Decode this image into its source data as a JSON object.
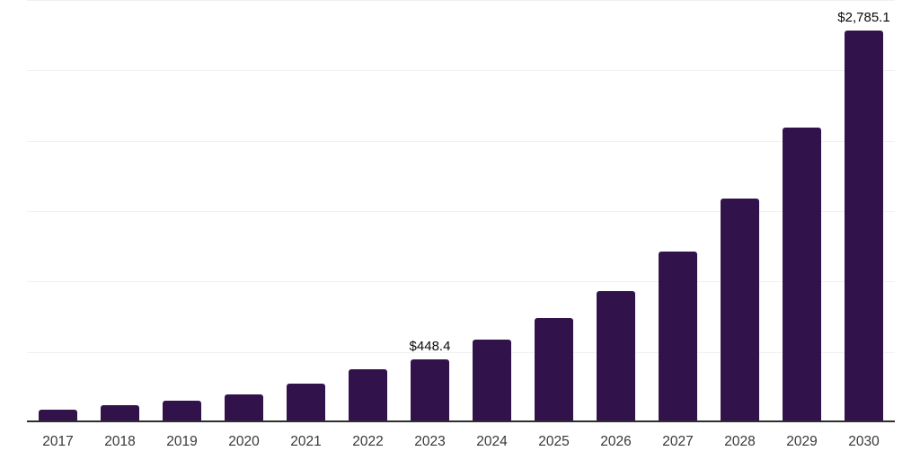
{
  "chart_data": {
    "type": "bar",
    "title": "",
    "xlabel": "",
    "ylabel": "",
    "categories": [
      "2017",
      "2018",
      "2019",
      "2020",
      "2021",
      "2022",
      "2023",
      "2024",
      "2025",
      "2026",
      "2027",
      "2028",
      "2029",
      "2030"
    ],
    "values": [
      88,
      120,
      152,
      200,
      275,
      374,
      448.4,
      589,
      739,
      934,
      1213,
      1590,
      2096,
      2785.1
    ],
    "data_labels": [
      "",
      "",
      "",
      "",
      "",
      "",
      "$448.4",
      "",
      "",
      "",
      "",
      "",
      "",
      "$2,785.1"
    ],
    "ylim": [
      0,
      3000
    ],
    "gridline_step": 500,
    "grid": true,
    "legend": "none",
    "bar_color": "#32124a",
    "gridline_color": "#f1f1f1",
    "axis_line_color": "#2e2e2e",
    "tick_label_color": "#383838",
    "data_label_color": "#0a0a0a",
    "background_color": "#ffffff"
  }
}
